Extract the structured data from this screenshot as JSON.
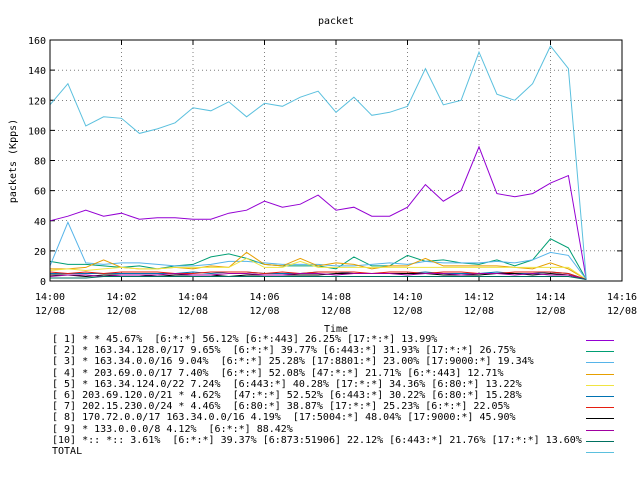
{
  "chart_data": {
    "type": "line",
    "title": "packet",
    "xlabel": "Time",
    "ylabel": "packets (Kpps)",
    "ylim": [
      0,
      160
    ],
    "yticks": [
      0,
      20,
      40,
      60,
      80,
      100,
      120,
      140,
      160
    ],
    "xlim": [
      "14:00",
      "14:16"
    ],
    "xticks": [
      {
        "time": "14:00",
        "date": "12/08"
      },
      {
        "time": "14:02",
        "date": "12/08"
      },
      {
        "time": "14:04",
        "date": "12/08"
      },
      {
        "time": "14:06",
        "date": "12/08"
      },
      {
        "time": "14:08",
        "date": "12/08"
      },
      {
        "time": "14:10",
        "date": "12/08"
      },
      {
        "time": "14:12",
        "date": "12/08"
      },
      {
        "time": "14:14",
        "date": "12/08"
      },
      {
        "time": "14:16",
        "date": "12/08"
      }
    ],
    "x": [
      "14:00:00",
      "14:00:30",
      "14:01:00",
      "14:01:30",
      "14:02:00",
      "14:02:30",
      "14:03:00",
      "14:03:30",
      "14:04:00",
      "14:04:30",
      "14:05:00",
      "14:05:30",
      "14:06:00",
      "14:06:30",
      "14:07:00",
      "14:07:30",
      "14:08:00",
      "14:08:30",
      "14:09:00",
      "14:09:30",
      "14:10:00",
      "14:10:30",
      "14:11:00",
      "14:11:30",
      "14:12:00",
      "14:12:30",
      "14:13:00",
      "14:13:30",
      "14:14:00",
      "14:14:30",
      "14:15:00"
    ],
    "series": [
      {
        "name": "[ 1] * * 45.67%  [6:*:*] 56.12% [6:*:443] 26.25% [17:*:*] 13.99%",
        "color": "#9400d3",
        "values": [
          40,
          43,
          47,
          43,
          45,
          41,
          42,
          42,
          41,
          41,
          45,
          47,
          53,
          49,
          51,
          57,
          47,
          49,
          43,
          43,
          49,
          64,
          53,
          60,
          89,
          58,
          56,
          58,
          65,
          70,
          1
        ]
      },
      {
        "name": "[ 2] * 163.34.128.0/17 9.65%  [6:*:*] 39.77% [6:443:*] 31.93% [17:*:*] 26.75%",
        "color": "#009e73",
        "values": [
          13,
          11,
          11,
          10,
          9,
          10,
          8,
          10,
          11,
          16,
          18,
          15,
          11,
          10,
          10,
          10,
          8,
          16,
          10,
          10,
          17,
          13,
          14,
          12,
          11,
          14,
          10,
          14,
          28,
          22,
          1
        ]
      },
      {
        "name": "[ 3] * 163.34.0.0/16 9.04%  [6:*:*] 25.28% [17:8801:*] 23.00% [17:9000:*] 19.34%",
        "color": "#56b4e9",
        "values": [
          10,
          39,
          12,
          11,
          12,
          12,
          11,
          10,
          10,
          11,
          13,
          13,
          12,
          11,
          11,
          11,
          10,
          10,
          11,
          12,
          11,
          13,
          12,
          12,
          12,
          13,
          12,
          14,
          19,
          17,
          1
        ]
      },
      {
        "name": "[ 4] * 203.69.0.0/17 7.40%  [6:*:*] 52.08% [47:*:*] 21.71% [6:*:443] 12.71%",
        "color": "#e69f00",
        "values": [
          8,
          8,
          9,
          14,
          9,
          8,
          8,
          9,
          8,
          10,
          9,
          19,
          11,
          10,
          15,
          10,
          12,
          11,
          8,
          10,
          10,
          15,
          10,
          10,
          10,
          10,
          9,
          8,
          12,
          8,
          1
        ]
      },
      {
        "name": "[ 5] * 163.34.124.0/22 7.24%  [6:443:*] 40.28% [17:*:*] 34.36% [6:80:*] 13.22%",
        "color": "#f0e442",
        "values": [
          7,
          8,
          7,
          8,
          9,
          8,
          8,
          9,
          9,
          9,
          9,
          15,
          9,
          9,
          13,
          9,
          9,
          9,
          9,
          9,
          9,
          9,
          9,
          9,
          9,
          9,
          9,
          9,
          9,
          9,
          1
        ]
      },
      {
        "name": "[ 6] 203.69.120.0/21 * 4.62%  [47:*:*] 52.52% [6:443:*] 30.22% [6:80:*] 15.28%",
        "color": "#0072b2",
        "values": [
          5,
          5,
          5,
          5,
          5,
          5,
          5,
          5,
          6,
          5,
          6,
          6,
          5,
          5,
          5,
          6,
          6,
          5,
          5,
          5,
          5,
          6,
          5,
          5,
          5,
          6,
          5,
          5,
          6,
          5,
          1
        ]
      },
      {
        "name": "[ 7] 202.15.230.0/24 * 4.46%  [6:80:*] 38.87% [17:*:*] 25.23% [6:*:*] 22.05%",
        "color": "#e51e10",
        "values": [
          6,
          5,
          6,
          5,
          6,
          6,
          6,
          5,
          5,
          6,
          6,
          6,
          5,
          6,
          5,
          6,
          6,
          6,
          5,
          6,
          6,
          5,
          6,
          6,
          5,
          5,
          6,
          6,
          6,
          5,
          1
        ]
      },
      {
        "name": "[ 8] 170.72.0.0/17 163.34.0.0/16 4.19%  [17:5004:*] 48.04% [17:9000:*] 45.90%",
        "color": "#000000",
        "values": [
          4,
          4,
          3,
          4,
          4,
          4,
          3,
          4,
          4,
          4,
          3,
          4,
          4,
          4,
          4,
          4,
          5,
          5,
          5,
          5,
          5,
          5,
          4,
          4,
          4,
          5,
          5,
          4,
          5,
          4,
          1
        ]
      },
      {
        "name": "[ 9] * 133.0.0.0/8 4.12%  [6:*:*] 88.42%",
        "color": "#a000a0",
        "values": [
          3,
          4,
          4,
          3,
          4,
          4,
          4,
          5,
          4,
          4,
          5,
          5,
          4,
          4,
          5,
          5,
          4,
          5,
          5,
          5,
          4,
          5,
          5,
          4,
          5,
          5,
          4,
          5,
          4,
          4,
          1
        ]
      },
      {
        "name": "[10] *:: *:: 3.61%  [6:*:*] 39.37% [6:873:51906] 22.12% [6:443:*] 21.76% [17:*:*] 13.60%",
        "color": "#007060",
        "values": [
          2,
          2,
          2,
          3,
          3,
          3,
          3,
          3,
          3,
          3,
          3,
          3,
          3,
          3,
          3,
          3,
          3,
          3,
          3,
          3,
          3,
          3,
          3,
          3,
          3,
          3,
          3,
          3,
          3,
          3,
          1
        ]
      },
      {
        "name": "TOTAL",
        "color": "#5bc0de",
        "values": [
          117,
          131,
          103,
          109,
          108,
          98,
          101,
          105,
          115,
          113,
          119,
          109,
          118,
          116,
          122,
          126,
          112,
          122,
          110,
          112,
          116,
          141,
          117,
          120,
          152,
          124,
          120,
          131,
          156,
          141,
          1
        ]
      }
    ]
  }
}
